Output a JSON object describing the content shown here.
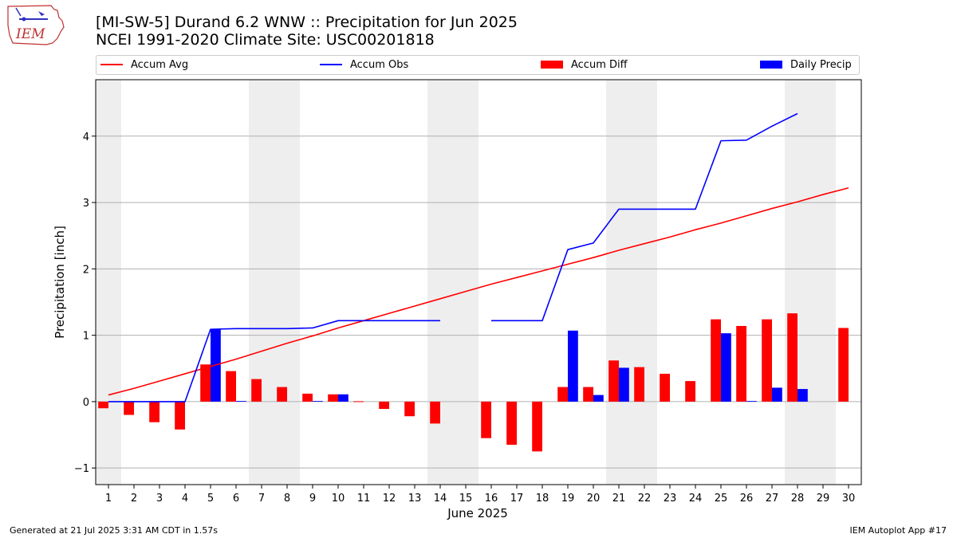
{
  "header": {
    "title_line1": "[MI-SW-5] Durand 6.2 WNW :: Precipitation for Jun 2025",
    "title_line2": "NCEI 1991-2020 Climate Site: USC00201818",
    "logo_text": "IEM"
  },
  "footer": {
    "left": "Generated at 21 Jul 2025 3:31 AM CDT in 1.57s",
    "right": "IEM Autoplot App #17"
  },
  "colors": {
    "accum_avg": "#ff0000",
    "accum_obs": "#0000ff",
    "accum_diff": "#ff0000",
    "daily_precip": "#0000ff",
    "weekend_band": "#eeeeee",
    "grid": "#b0b0b0"
  },
  "chart_data": {
    "type": "bar",
    "xlabel": "June 2025",
    "ylabel": "Precipitation [inch]",
    "xlim": [
      0.5,
      30.5
    ],
    "ylim": [
      -1.25,
      4.85
    ],
    "yticks": [
      -1,
      0,
      1,
      2,
      3,
      4
    ],
    "ytick_labels": [
      "−1",
      "0",
      "1",
      "2",
      "3",
      "4"
    ],
    "grid": "horizontal",
    "legend_position": "top",
    "weekend_bands": [
      [
        0.5,
        1.5
      ],
      [
        6.5,
        8.5
      ],
      [
        13.5,
        15.5
      ],
      [
        20.5,
        22.5
      ],
      [
        27.5,
        29.5
      ]
    ],
    "days": [
      1,
      2,
      3,
      4,
      5,
      6,
      7,
      8,
      9,
      10,
      11,
      12,
      13,
      14,
      15,
      16,
      17,
      18,
      19,
      20,
      21,
      22,
      23,
      24,
      25,
      26,
      27,
      28,
      29,
      30
    ],
    "series": [
      {
        "name": "Accum Avg",
        "kind": "line",
        "values": [
          0.1,
          0.2,
          0.31,
          0.42,
          0.53,
          0.64,
          0.76,
          0.88,
          0.99,
          1.11,
          1.22,
          1.33,
          1.44,
          1.55,
          1.66,
          1.77,
          1.87,
          1.97,
          2.07,
          2.17,
          2.28,
          2.38,
          2.48,
          2.59,
          2.69,
          2.8,
          2.91,
          3.01,
          3.12,
          3.22
        ]
      },
      {
        "name": "Accum Obs",
        "kind": "line",
        "values": [
          0.0,
          0.0,
          0.0,
          0.0,
          1.09,
          1.1,
          1.1,
          1.1,
          1.11,
          1.22,
          1.22,
          1.22,
          1.22,
          1.22,
          null,
          1.22,
          1.22,
          1.22,
          2.29,
          2.39,
          2.9,
          2.9,
          2.9,
          2.9,
          3.93,
          3.94,
          4.15,
          4.34,
          null,
          null
        ]
      },
      {
        "name": "Accum Diff",
        "kind": "bar",
        "values": [
          -0.1,
          -0.2,
          -0.31,
          -0.42,
          0.56,
          0.46,
          0.34,
          0.22,
          0.12,
          0.11,
          0.0,
          -0.11,
          -0.22,
          -0.33,
          null,
          -0.55,
          -0.65,
          -0.75,
          0.22,
          0.22,
          0.62,
          0.52,
          0.42,
          0.31,
          1.24,
          1.14,
          1.24,
          1.33,
          null,
          1.11
        ]
      },
      {
        "name": "Daily Precip",
        "kind": "bar",
        "values": [
          0.0,
          0.0,
          0.0,
          0.0,
          1.09,
          0.01,
          0.0,
          0.0,
          0.01,
          0.11,
          0.0,
          0.0,
          0.0,
          0.0,
          null,
          0.0,
          0.0,
          0.0,
          1.07,
          0.1,
          0.51,
          0.0,
          0.0,
          0.0,
          1.03,
          0.01,
          0.21,
          0.19,
          null,
          null
        ]
      }
    ]
  }
}
